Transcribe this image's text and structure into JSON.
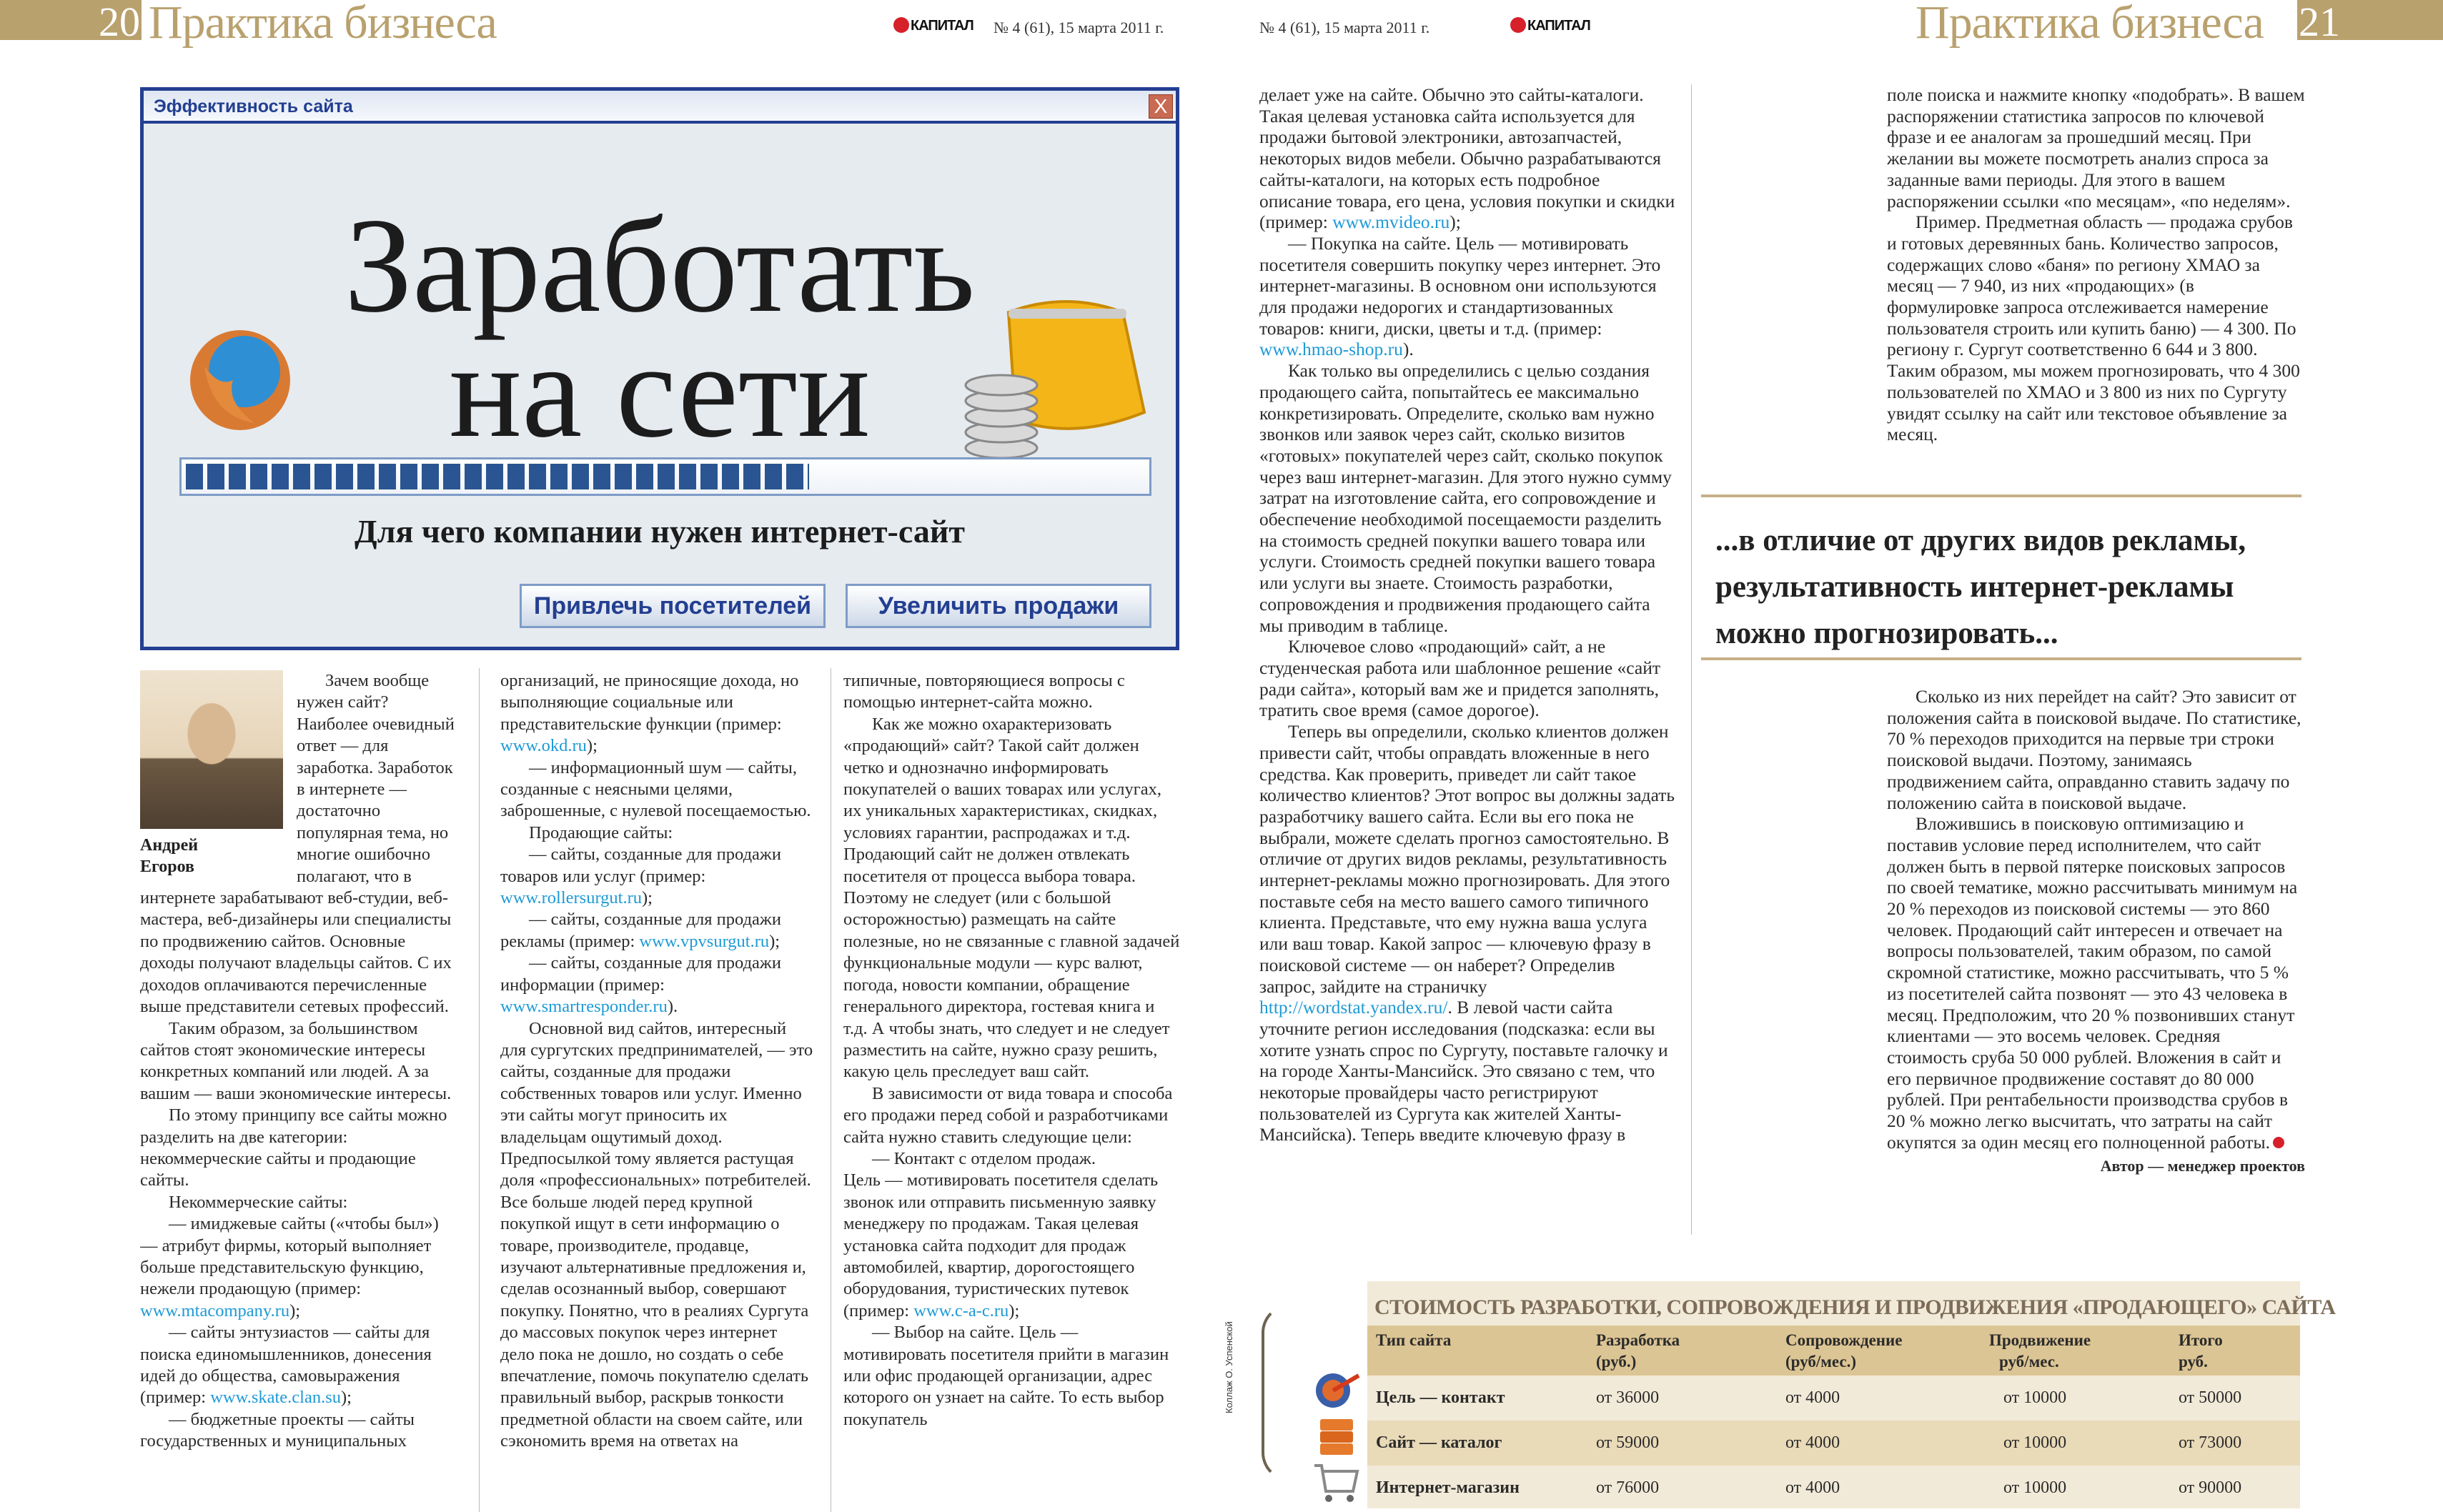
{
  "header": {
    "left_page_number": "20",
    "right_page_number": "21",
    "rubric": "Практика бизнеса",
    "issue": "№ 4 (61), 15 марта 2011 г.",
    "logo": "КАПИТАЛ"
  },
  "window": {
    "title": "Эффективность сайта",
    "close_label": "X",
    "headline_line1": "Заработать",
    "headline_line2": "на сети",
    "progress_percent": 65,
    "subtitle": "Для чего компании нужен интернет-сайт",
    "button_attract": "Привлечь посетителей",
    "button_sales": "Увеличить продажи",
    "icons": [
      "firefox-icon",
      "purse-coins-icon"
    ]
  },
  "author": {
    "name_line1": "Андрей",
    "name_line2": "Егоров",
    "role": "Автор — менеджер проектов"
  },
  "columns": {
    "left1": [
      {
        "indent": true,
        "parts": [
          "Зачем вообще нужен сайт? Наиболее очевидный ответ — для заработка. Заработок в интернете — достаточно популярная тема, но многие ошибочно полагают, что в интернете зарабатывают веб-студии, веб-мастера, веб-дизайнеры или специалисты по продвижению сайтов. Основные доходы получают владельцы сайтов. С их доходов оплачиваются перечисленные выше представители сетевых профессий."
        ]
      },
      {
        "indent": true,
        "parts": [
          "Таким образом, за большинством сайтов стоят экономические интересы конкретных компаний или людей. А за вашим — ваши экономические интересы."
        ]
      },
      {
        "indent": true,
        "parts": [
          "По этому принципу все сайты можно разделить на две категории: некоммерческие сайты и продающие сайты."
        ]
      },
      {
        "indent": true,
        "parts": [
          "Некоммерческие сайты:"
        ]
      },
      {
        "indent": true,
        "parts": [
          "— имиджевые сайты («чтобы был») — атрибут фирмы, который выполняет больше представительскую функцию, нежели продающую (пример: ",
          {
            "link": "www.mtacompany.ru"
          },
          ");"
        ]
      },
      {
        "indent": true,
        "parts": [
          "— сайты энтузиастов — сайты для поиска единомышленников, донесения идей до общества, самовыражения (пример: ",
          {
            "link": "www.skate.clan.su"
          },
          ");"
        ]
      },
      {
        "indent": true,
        "parts": [
          "— бюджетные проекты — сайты государственных и муниципальных"
        ]
      }
    ],
    "left2": [
      {
        "indent": false,
        "parts": [
          "организаций, не приносящие дохода, но выполняющие социальные или представительские функции (пример: ",
          {
            "link": "www.okd.ru"
          },
          ");"
        ]
      },
      {
        "indent": true,
        "parts": [
          "— информационный шум — сайты, созданные с неясными целями, заброшенные, с нулевой посещаемостью."
        ]
      },
      {
        "indent": true,
        "parts": [
          "Продающие сайты:"
        ]
      },
      {
        "indent": true,
        "parts": [
          "— сайты, созданные для продажи товаров или услуг (пример: ",
          {
            "link": "www.rollersurgut.ru"
          },
          ");"
        ]
      },
      {
        "indent": true,
        "parts": [
          "— сайты, созданные для продажи рекламы (пример: ",
          {
            "link": "www.vpvsurgut.ru"
          },
          ");"
        ]
      },
      {
        "indent": true,
        "parts": [
          "— сайты, созданные для продажи информации (пример: ",
          {
            "link": "www.smartresponder.ru"
          },
          ")."
        ]
      },
      {
        "indent": true,
        "parts": [
          "Основной вид сайтов, интересный для сургутских предпринимателей, — это сайты, созданные для продажи собственных товаров или услуг. Именно эти сайты могут приносить их владельцам ощутимый доход. Предпосылкой тому является растущая доля «профессиональных» потребителей. Все больше людей перед крупной покупкой ищут в сети информацию о товаре, производителе, продавце, изучают альтернативные предложения и, сделав осознанный выбор, совершают покупку. Понятно, что в реалиях Сургута до массовых покупок через интернет дело пока не дошло, но создать о себе впечатление, помочь покупателю сделать правильный выбор, раскрыв тонкости предметной области на своем сайте, или сэкономить время на ответах на"
        ]
      }
    ],
    "left3": [
      {
        "indent": false,
        "parts": [
          "типичные, повторяющиеся вопросы с помощью интернет-сайта можно."
        ]
      },
      {
        "indent": true,
        "parts": [
          "Как же можно охарактеризовать «продающий» сайт? Такой сайт должен четко и однозначно информировать покупателей о ваших товарах или услугах, их уникальных характеристиках, скидках, условиях гарантии, распродажах и т.д. Продающий сайт не должен отвлекать посетителя от процесса выбора товара. Поэтому не следует (или с большой осторожностью) размещать на сайте полезные, но не связанные с главной задачей функциональные модули — курс валют, погода, новости компании, обращение генерального директора, гостевая книга и т.д. А чтобы знать, что следует и не следует разместить на сайте, нужно сразу решить, какую цель преследует ваш сайт."
        ]
      },
      {
        "indent": true,
        "parts": [
          "В зависимости от вида товара и способа его продажи перед собой и разработчиками сайта нужно ставить следующие цели:"
        ]
      },
      {
        "indent": true,
        "parts": [
          "— Контакт с отделом продаж."
        ]
      },
      {
        "indent": false,
        "parts": [
          "Цель — мотивировать посетителя сделать звонок или отправить письменную заявку менеджеру по продажам. Такая целевая установка сайта подходит для продаж автомобилей, квартир, дорогостоящего оборудования, туристических путевок (пример: ",
          {
            "link": "www.c-a-c.ru"
          },
          ");"
        ]
      },
      {
        "indent": true,
        "parts": [
          "— Выбор на сайте. Цель — мотивировать посетителя прийти в магазин или офис продающей организации, адрес которого он узнает на сайте. То есть выбор покупатель"
        ]
      }
    ],
    "right1": [
      {
        "indent": false,
        "parts": [
          "делает уже на сайте. Обычно это сайты-каталоги. Такая целевая установка сайта используется для продажи бытовой электроники, автозапчастей, некоторых видов мебели. Обычно разрабатываются сайты-каталоги, на которых есть подробное описание товара, его цена, условия покупки и скидки (пример: ",
          {
            "link": "www.mvideo.ru"
          },
          ");"
        ]
      },
      {
        "indent": true,
        "parts": [
          "— Покупка на сайте. Цель — мотивировать посетителя совершить покупку через интернет. Это интернет-магазины. В основном они используются для продажи недорогих и стандартизованных товаров: книги, диски, цветы и т.д. (пример: ",
          {
            "link": "www.hmao-shop.ru"
          },
          ")."
        ]
      },
      {
        "indent": true,
        "parts": [
          "Как только вы определились с целью создания продающего сайта, попытайтесь ее максимально конкретизировать. Определите, сколько вам нужно звонков или заявок через сайт, сколько визитов «готовых» покупателей через сайт, сколько покупок через ваш интернет-магазин. Для этого нужно сумму затрат на изготовление сайта, его сопровождение и обеспечение необходимой посещаемости разделить на стоимость средней покупки вашего товара или услуги. Стоимость средней покупки вашего товара или услуги вы знаете. Стоимость разработки, сопровождения и продвижения продающего сайта мы приводим в таблице."
        ]
      },
      {
        "indent": true,
        "parts": [
          "Ключевое слово «продающий» сайт, а не студенческая работа или шаблонное решение «сайт ради сайта», который вам же и придется заполнять, тратить свое время (самое дорогое)."
        ]
      },
      {
        "indent": true,
        "parts": [
          "Теперь вы определили, сколько клиентов должен привести сайт, чтобы оправдать вложенные в него средства. Как проверить, приведет ли сайт такое количество клиентов? Этот вопрос вы должны задать разработчику вашего сайта. Если вы его пока не выбрали, можете сделать прогноз самостоятельно. В отличие от других видов рекламы, результативность интернет-рекламы можно прогнозировать. Для этого поставьте себя на место вашего самого типичного клиента. Представьте, что ему нужна ваша услуга или ваш товар. Какой запрос — ключевую фразу в поисковой системе — он наберет? Определив запрос, зайдите на страничку ",
          {
            "link": "http://wordstat.yandex.ru/"
          },
          ". В левой части сайта уточните регион исследования (подсказка: если вы хотите узнать спрос по Сургуту, поставьте галочку и на городе Ханты-Мансийск. Это связано с тем, что некоторые провайдеры часто регистрируют пользователей из Сургута как жителей Ханты-Мансийска). Теперь введите ключевую фразу в"
        ]
      }
    ],
    "right2_top": [
      {
        "indent": false,
        "parts": [
          "поле поиска и нажмите кнопку «подобрать». В вашем распоряжении статистика запросов по ключевой фразе и ее аналогам за прошедший месяц. При желании вы можете посмотреть анализ спроса за заданные вами периоды. Для этого в вашем распоряжении ссылки «по месяцам», «по неделям»."
        ]
      },
      {
        "indent": true,
        "parts": [
          "Пример. Предметная область — продажа срубов и готовых деревянных бань. Количество запросов, содержащих слово «баня» по региону ХМАО за месяц — 7 940, из них «продающих» (в формулировке запроса отслеживается намерение пользователя строить или купить баню) — 4 300. По региону г. Сургут соответственно 6 644 и 3 800. Таким образом, мы можем прогнозировать, что 4 300 пользователей по ХМАО и 3 800 из них по Сургуту увидят ссылку на сайт или текстовое объявление за месяц."
        ]
      }
    ],
    "right2_bottom": [
      {
        "indent": true,
        "parts": [
          "Сколько из них перейдет на сайт? Это зависит от положения сайта в поисковой выдаче. По статистике, 70 % переходов приходится на первые три строки поисковой выдачи. Поэтому, занимаясь продвижением сайта, оправданно ставить задачу по положению сайта в поисковой выдаче."
        ]
      },
      {
        "indent": true,
        "parts": [
          "Вложившись в поисковую оптимизацию и поставив условие перед исполнителем, что сайт должен быть в первой пятерке поисковых запросов по своей тематике, можно рассчитывать минимум на 20 % переходов из поисковой системы — это 860 человек. Продающий сайт интересен и отвечает на вопросы пользователей, таким образом, по самой скромной статистике, можно рассчитывать, что 5 % из посетителей сайта позвонят — это 43 человека в месяц. Предположим, что 20 % позвонивших станут клиентами — это восемь человек. Средняя стоимость сруба 50 000 рублей. Вложения в сайт и его первичное продвижение составят до 80  000 рублей. При рентабельности производства срубов в 20 % можно легко высчитать, что затраты на сайт окупятся за один месяц его полноценной работы."
        ]
      }
    ]
  },
  "pull_quote": "...в отличие от других видов рекламы, результативность интернет-рекламы можно прогнозировать...",
  "table": {
    "title": "СТОИМОСТЬ РАЗРАБОТКИ, СОПРОВОЖДЕНИЯ И ПРОДВИЖЕНИЯ «ПРОДАЮЩЕГО» САЙТА",
    "headers": [
      [
        "Тип сайта",
        ""
      ],
      [
        "Разработка",
        "(руб.)"
      ],
      [
        "Сопровождение",
        "(руб/мес.)"
      ],
      [
        "Продвижение",
        "руб/мес."
      ],
      [
        "Итого",
        "руб."
      ]
    ],
    "rows": [
      [
        "Цель — контакт",
        "от 36000",
        "от 4000",
        "от 10000",
        "от 50000"
      ],
      [
        "Сайт — каталог",
        "от 59000",
        "от 4000",
        "от 10000",
        "от 73000"
      ],
      [
        "Интернет-магазин",
        "от 76000",
        "от 4000",
        "от 10000",
        "от 90000"
      ]
    ],
    "row_icons": [
      "target-arrow-icon",
      "catalog-books-icon",
      "shopping-cart-icon"
    ]
  },
  "credit": "Коллаж О. Успенской",
  "colors": {
    "gold": "#b9a16e",
    "window_blue": "#233f91",
    "progress_blue": "#2a5592",
    "link": "#1e9ad6",
    "logo_red": "#d6202a"
  }
}
